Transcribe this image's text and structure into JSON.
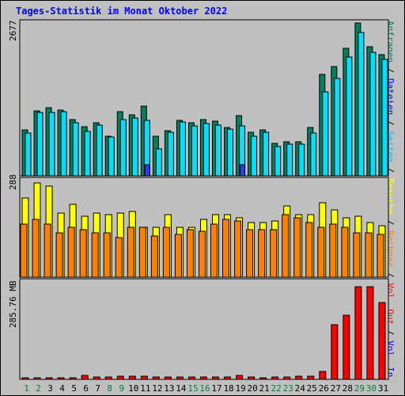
{
  "title": "Tages-Statistik im Monat Oktober 2022",
  "colors": {
    "background": "#c0c0c0",
    "title": "#0000ff",
    "anfragen": "#008060",
    "dateien": "#00e0ff",
    "seiten": "#00c0ff",
    "besuche": "#ffff00",
    "rechner": "#ff8000",
    "kbytes": "#ff0000",
    "weekday": "#008040",
    "highlight": "#2040ff"
  },
  "chart_data": [
    {
      "type": "bar",
      "name": "requests",
      "ymax_label": "2677",
      "ylim": [
        0,
        2677
      ],
      "legend": [
        {
          "label": "Anfragen",
          "color": "#008060"
        },
        {
          "label": "Dateien",
          "color": "#0000ff"
        },
        {
          "label": "Seiten",
          "color": "#00c0ff"
        }
      ],
      "categories": [
        "1",
        "2",
        "3",
        "4",
        "5",
        "6",
        "7",
        "8",
        "9",
        "10",
        "11",
        "12",
        "13",
        "14",
        "15",
        "16",
        "17",
        "18",
        "19",
        "20",
        "21",
        "22",
        "23",
        "24",
        "25",
        "26",
        "27",
        "28",
        "29",
        "30",
        "31"
      ],
      "series": [
        {
          "name": "Anfragen",
          "values": [
            810,
            1150,
            1200,
            1170,
            1000,
            870,
            940,
            700,
            1140,
            1080,
            1240,
            700,
            800,
            980,
            940,
            990,
            970,
            860,
            1060,
            770,
            810,
            580,
            600,
            600,
            850,
            1790,
            1940,
            2260,
            2700,
            2280,
            2140
          ]
        },
        {
          "name": "Dateien",
          "values": [
            760,
            1120,
            1120,
            1140,
            940,
            780,
            900,
            680,
            1000,
            1030,
            980,
            480,
            770,
            950,
            880,
            930,
            890,
            820,
            880,
            700,
            770,
            520,
            560,
            560,
            760,
            1490,
            1720,
            2100,
            2540,
            2180,
            2060
          ]
        },
        {
          "name": "Seiten",
          "values": [
            0,
            0,
            0,
            0,
            0,
            0,
            0,
            0,
            0,
            0,
            200,
            0,
            0,
            0,
            0,
            0,
            0,
            0,
            190,
            0,
            0,
            0,
            0,
            0,
            0,
            0,
            0,
            0,
            0,
            0,
            0
          ]
        }
      ]
    },
    {
      "type": "bar",
      "name": "visits",
      "ymax_label": "288",
      "ylim": [
        0,
        288
      ],
      "legend": [
        {
          "label": "Besuche",
          "color": "#ffff00"
        },
        {
          "label": "Rechner",
          "color": "#ff8000"
        }
      ],
      "categories": [
        "1",
        "2",
        "3",
        "4",
        "5",
        "6",
        "7",
        "8",
        "9",
        "10",
        "11",
        "12",
        "13",
        "14",
        "15",
        "16",
        "17",
        "18",
        "19",
        "20",
        "21",
        "22",
        "23",
        "24",
        "25",
        "26",
        "27",
        "28",
        "29",
        "30",
        "31"
      ],
      "series": [
        {
          "name": "Besuche",
          "values": [
            240,
            285,
            275,
            195,
            220,
            185,
            195,
            190,
            195,
            200,
            150,
            150,
            190,
            150,
            150,
            175,
            190,
            190,
            180,
            165,
            165,
            170,
            215,
            190,
            190,
            225,
            205,
            180,
            185,
            165,
            155
          ]
        },
        {
          "name": "Rechner",
          "values": [
            160,
            175,
            160,
            135,
            150,
            145,
            135,
            135,
            120,
            150,
            150,
            125,
            150,
            130,
            145,
            140,
            160,
            175,
            170,
            145,
            145,
            145,
            190,
            180,
            165,
            150,
            160,
            150,
            135,
            135,
            130
          ]
        }
      ]
    },
    {
      "type": "bar",
      "name": "volume",
      "ymax_label": "285.76 MB",
      "ylim": [
        0,
        285.76
      ],
      "legend": [
        {
          "label": "Vol. In",
          "color": "#0000ff"
        },
        {
          "label": "Vol. Out",
          "color": "#ff0000"
        }
      ],
      "categories": [
        "1",
        "2",
        "3",
        "4",
        "5",
        "6",
        "7",
        "8",
        "9",
        "10",
        "11",
        "12",
        "13",
        "14",
        "15",
        "16",
        "17",
        "18",
        "19",
        "20",
        "21",
        "22",
        "23",
        "24",
        "25",
        "26",
        "27",
        "28",
        "29",
        "30",
        "31"
      ],
      "series": [
        {
          "name": "Vol. Out",
          "values": [
            6,
            6,
            6,
            6,
            6,
            12,
            7,
            7,
            10,
            10,
            10,
            7,
            7,
            7,
            7,
            7,
            7,
            7,
            12,
            7,
            4,
            7,
            8,
            9,
            10,
            25,
            170,
            200,
            290,
            290,
            240
          ]
        }
      ]
    }
  ],
  "weekend_days": [
    "1",
    "2",
    "8",
    "9",
    "15",
    "16",
    "22",
    "23",
    "29",
    "30"
  ]
}
